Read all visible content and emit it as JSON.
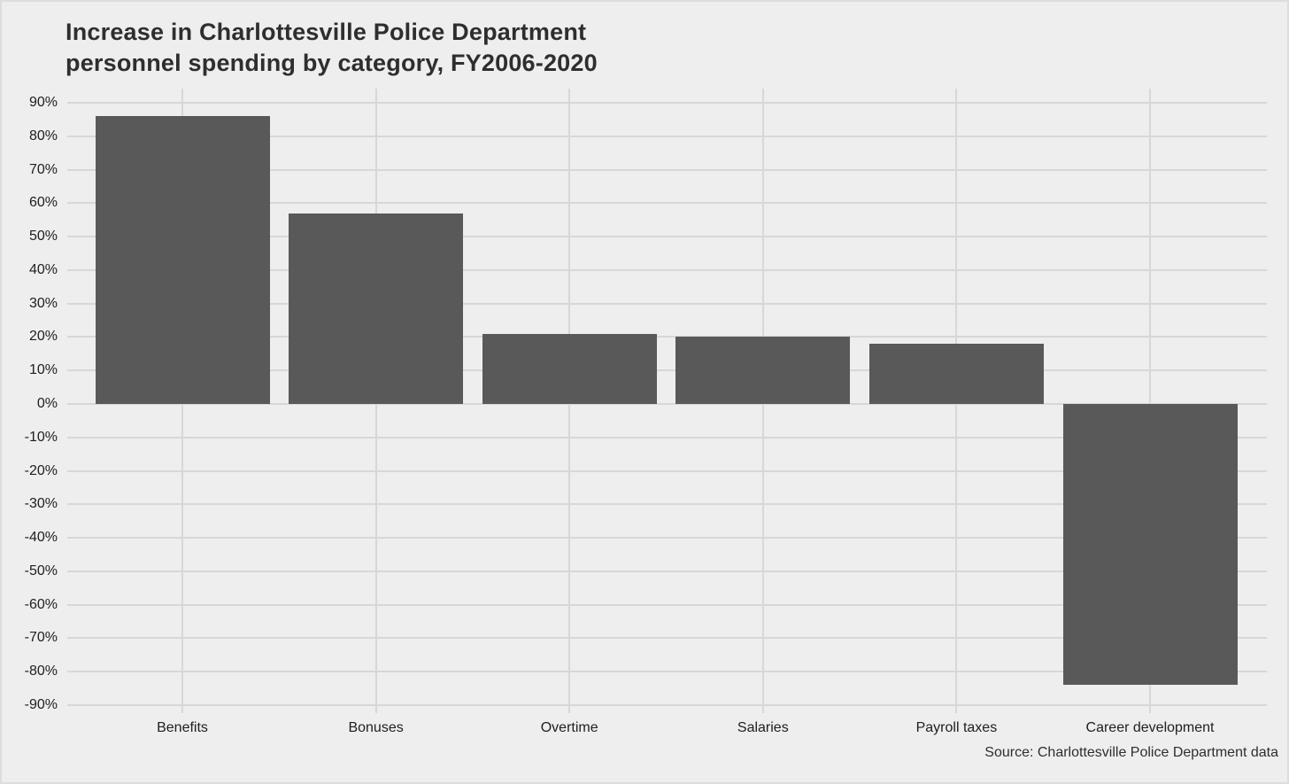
{
  "header": {
    "title_line1": "Increase in Charlottesville Police Department",
    "title_line2": "personnel spending by category, FY2006-2020"
  },
  "footer": {
    "source": "Source: Charlottesville Police Department data"
  },
  "chart_data": {
    "type": "bar",
    "title": "Increase in Charlottesville Police Department personnel spending by category, FY2006-2020",
    "categories": [
      "Benefits",
      "Bonuses",
      "Overtime",
      "Salaries",
      "Payroll taxes",
      "Career development"
    ],
    "values": [
      86,
      57,
      21,
      20,
      18,
      -84
    ],
    "unit": "%",
    "xlabel": "",
    "ylabel": "",
    "ylim": [
      -92.5,
      92.5
    ],
    "y_ticks": [
      90,
      80,
      70,
      60,
      50,
      40,
      30,
      20,
      10,
      0,
      -10,
      -20,
      -30,
      -40,
      -50,
      -60,
      -70,
      -80,
      -90
    ],
    "y_tick_labels": [
      "90%",
      "80%",
      "70%",
      "60%",
      "50%",
      "40%",
      "30%",
      "20%",
      "10%",
      "0%",
      "-10%",
      "-20%",
      "-30%",
      "-40%",
      "-50%",
      "-60%",
      "-70%",
      "-80%",
      "-90%"
    ],
    "grid": true,
    "legend": "none",
    "source": "Source: Charlottesville Police Department data",
    "colors": {
      "bar": "#595959",
      "background": "#eeeeee",
      "gridline": "#d7d7d7",
      "title_text": "#2e2e2e",
      "axis_text": "#202020"
    }
  }
}
